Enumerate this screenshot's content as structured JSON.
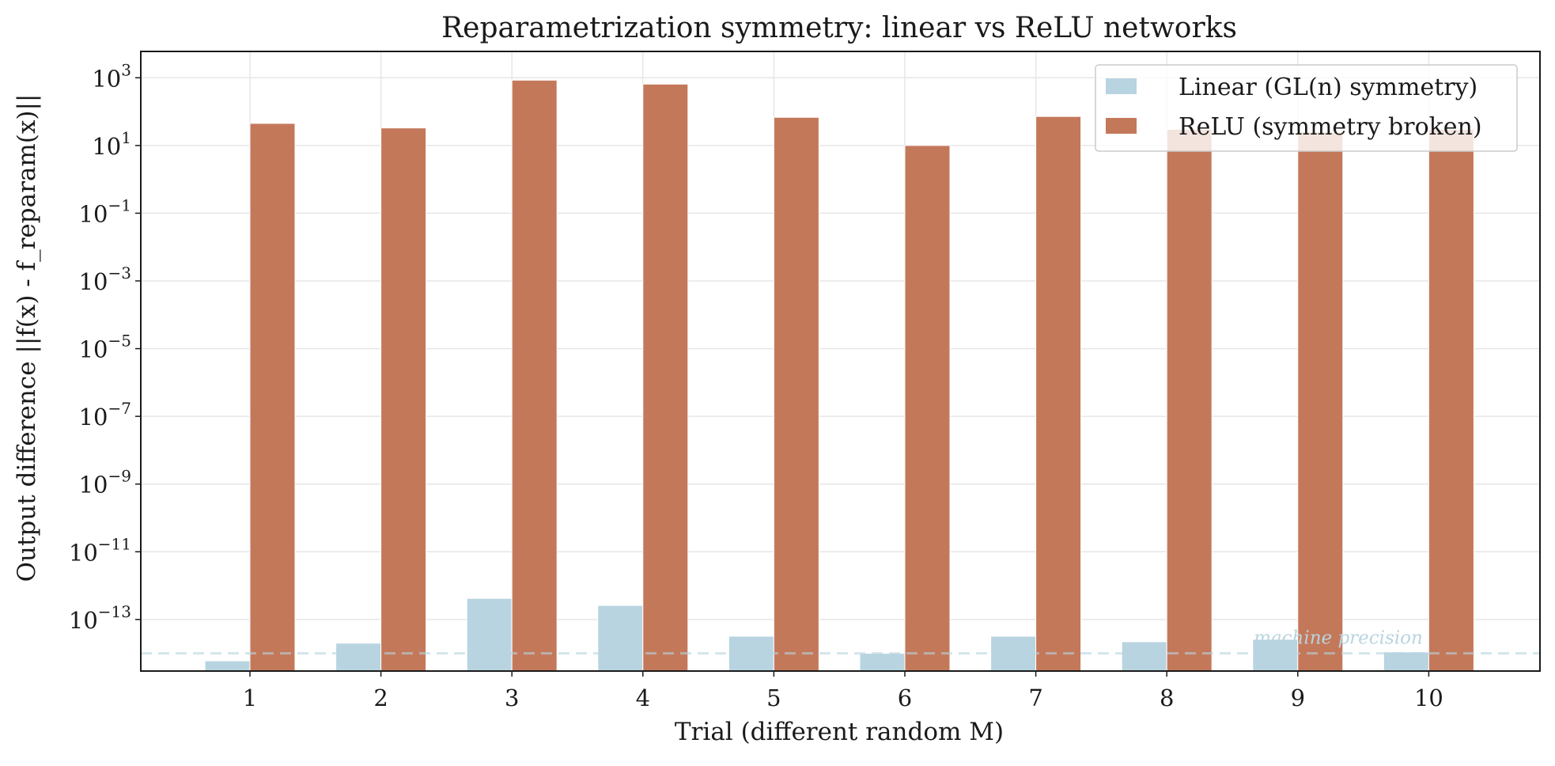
{
  "chart_data": {
    "type": "bar",
    "title": "Reparametrization symmetry: linear vs ReLU networks",
    "xlabel": "Trial (different random M)",
    "ylabel": "Output difference ||f(x) - f_reparam(x)||",
    "yscale": "log",
    "ylim": [
      3e-15,
      6000
    ],
    "y_ticks": [
      {
        "base": "10",
        "exp": "3",
        "value": 1000
      },
      {
        "base": "10",
        "exp": "1",
        "value": 10
      },
      {
        "base": "10",
        "exp": "−1",
        "value": 0.1
      },
      {
        "base": "10",
        "exp": "−3",
        "value": 0.001
      },
      {
        "base": "10",
        "exp": "−5",
        "value": 1e-05
      },
      {
        "base": "10",
        "exp": "−7",
        "value": 1e-07
      },
      {
        "base": "10",
        "exp": "−9",
        "value": 1e-09
      },
      {
        "base": "10",
        "exp": "−11",
        "value": 1e-11
      },
      {
        "base": "10",
        "exp": "−13",
        "value": 1e-13
      }
    ],
    "categories": [
      "1",
      "2",
      "3",
      "4",
      "5",
      "6",
      "7",
      "8",
      "9",
      "10"
    ],
    "series": [
      {
        "name": "Linear (GL(n) symmetry)",
        "color": "#b8d4e0",
        "values": [
          6e-15,
          2e-14,
          4.2e-13,
          2.6e-13,
          3.2e-14,
          1e-14,
          3.2e-14,
          2.2e-14,
          2.6e-14,
          1.1e-14
        ]
      },
      {
        "name": "ReLU (symmetry broken)",
        "color": "#c4785a",
        "values": [
          45,
          33,
          850,
          650,
          68,
          10,
          72,
          30,
          25,
          30
        ]
      }
    ],
    "grid": true,
    "legend_position": "top-right",
    "reference_line": {
      "value": 1e-14,
      "label": "machine precision",
      "color": "#b8d4e0",
      "style": "dashed"
    }
  }
}
